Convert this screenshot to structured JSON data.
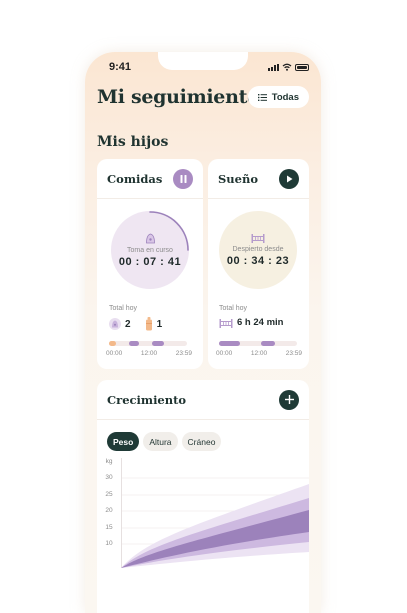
{
  "status": {
    "time": "9:41"
  },
  "header": {
    "title": "Mi seguimiento",
    "filter_label": "Todas"
  },
  "section": {
    "title": "Mis hijos"
  },
  "feeding": {
    "title": "Comidas",
    "ring_caption": "Toma en curso",
    "timer": "00 : 07 : 41",
    "total_label": "Total hoy",
    "breast_count": "2",
    "bottle_count": "1",
    "timeline_labels": [
      "00:00",
      "12:00",
      "23:59"
    ]
  },
  "sleep": {
    "title": "Sueño",
    "ring_caption": "Despierto desde",
    "timer": "00 : 34 : 23",
    "total_label": "Total hoy",
    "total_value": "6 h 24 min",
    "timeline_labels": [
      "00:00",
      "12:00",
      "23:59"
    ]
  },
  "growth": {
    "title": "Crecimiento",
    "tabs": [
      {
        "label": "Peso",
        "active": true
      },
      {
        "label": "Altura",
        "active": false
      },
      {
        "label": "Cráneo",
        "active": false
      }
    ],
    "unit": "kg",
    "y_ticks": [
      "30",
      "25",
      "20",
      "15",
      "10"
    ]
  },
  "colors": {
    "accent_purple": "#9c82bb",
    "dark_green": "#1f3a36",
    "bottle_orange": "#f3b98a",
    "sleep_cream": "#f6f0e1"
  },
  "icons": {
    "filter": "list-icon",
    "pause": "pause-icon",
    "play": "play-icon",
    "add": "plus-icon",
    "breast": "breast-icon",
    "bottle": "bottle-icon",
    "crib": "crib-icon"
  }
}
